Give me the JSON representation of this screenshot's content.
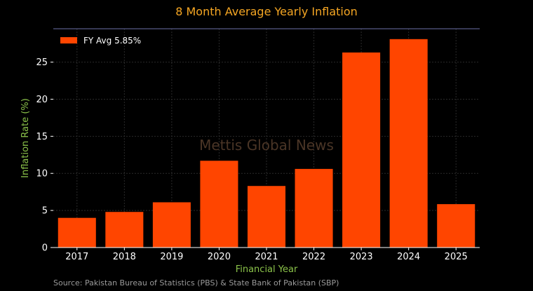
{
  "chart_data": {
    "type": "bar",
    "title": "8 Month Average Yearly Inflation",
    "xlabel": "Financial Year",
    "ylabel": "Inflation Rate (%)",
    "categories": [
      "2017",
      "2018",
      "2019",
      "2020",
      "2021",
      "2022",
      "2023",
      "2024",
      "2025"
    ],
    "series": [
      {
        "name": "FY Avg 5.85%",
        "values": [
          4.0,
          4.8,
          6.1,
          11.7,
          8.3,
          10.6,
          26.3,
          28.1,
          5.85
        ]
      }
    ],
    "ylim": [
      0,
      29.5
    ],
    "yticks": [
      0,
      5,
      10,
      15,
      20,
      25
    ],
    "grid": true,
    "legend_position": "top-left",
    "watermark": "Mettis Global News",
    "source": "Source: Pakistan Bureau of Statistics (PBS) & State Bank of Pakistan (SBP)"
  },
  "colors": {
    "background": "#000000",
    "bar": "#ff4500",
    "title": "#f5a623",
    "axis_label": "#8bc34a",
    "tick": "#ffffff",
    "grid": "#2a2a2a",
    "top_rule": "#6b6fa8",
    "watermark": "#4a3526",
    "source": "#9a9a9a"
  }
}
